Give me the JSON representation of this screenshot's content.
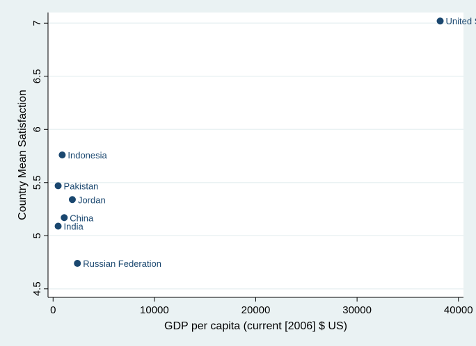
{
  "chart_data": {
    "type": "scatter",
    "title": "",
    "xlabel": "GDP per capita (current [2006] $ US)",
    "ylabel": "Country Mean Satisfaction",
    "xlim": [
      -500,
      40500
    ],
    "ylim": [
      4.42,
      7.1
    ],
    "xticks": [
      0,
      10000,
      20000,
      30000,
      40000
    ],
    "yticks": [
      4.5,
      5,
      5.5,
      6,
      6.5,
      7
    ],
    "xtick_labels": [
      "0",
      "10000",
      "20000",
      "30000",
      "40000"
    ],
    "ytick_labels": [
      "4.5",
      "5",
      "5.5",
      "6",
      "6.5",
      "7"
    ],
    "grid": true,
    "marker_color": "#1a476f",
    "points": [
      {
        "label": "United States",
        "x": 38200,
        "y": 7.02
      },
      {
        "label": "Indonesia",
        "x": 900,
        "y": 5.76
      },
      {
        "label": "Pakistan",
        "x": 500,
        "y": 5.47
      },
      {
        "label": "Jordan",
        "x": 1900,
        "y": 5.34
      },
      {
        "label": "China",
        "x": 1100,
        "y": 5.17
      },
      {
        "label": "India",
        "x": 500,
        "y": 5.09
      },
      {
        "label": "Russian Federation",
        "x": 2400,
        "y": 4.74
      }
    ]
  }
}
